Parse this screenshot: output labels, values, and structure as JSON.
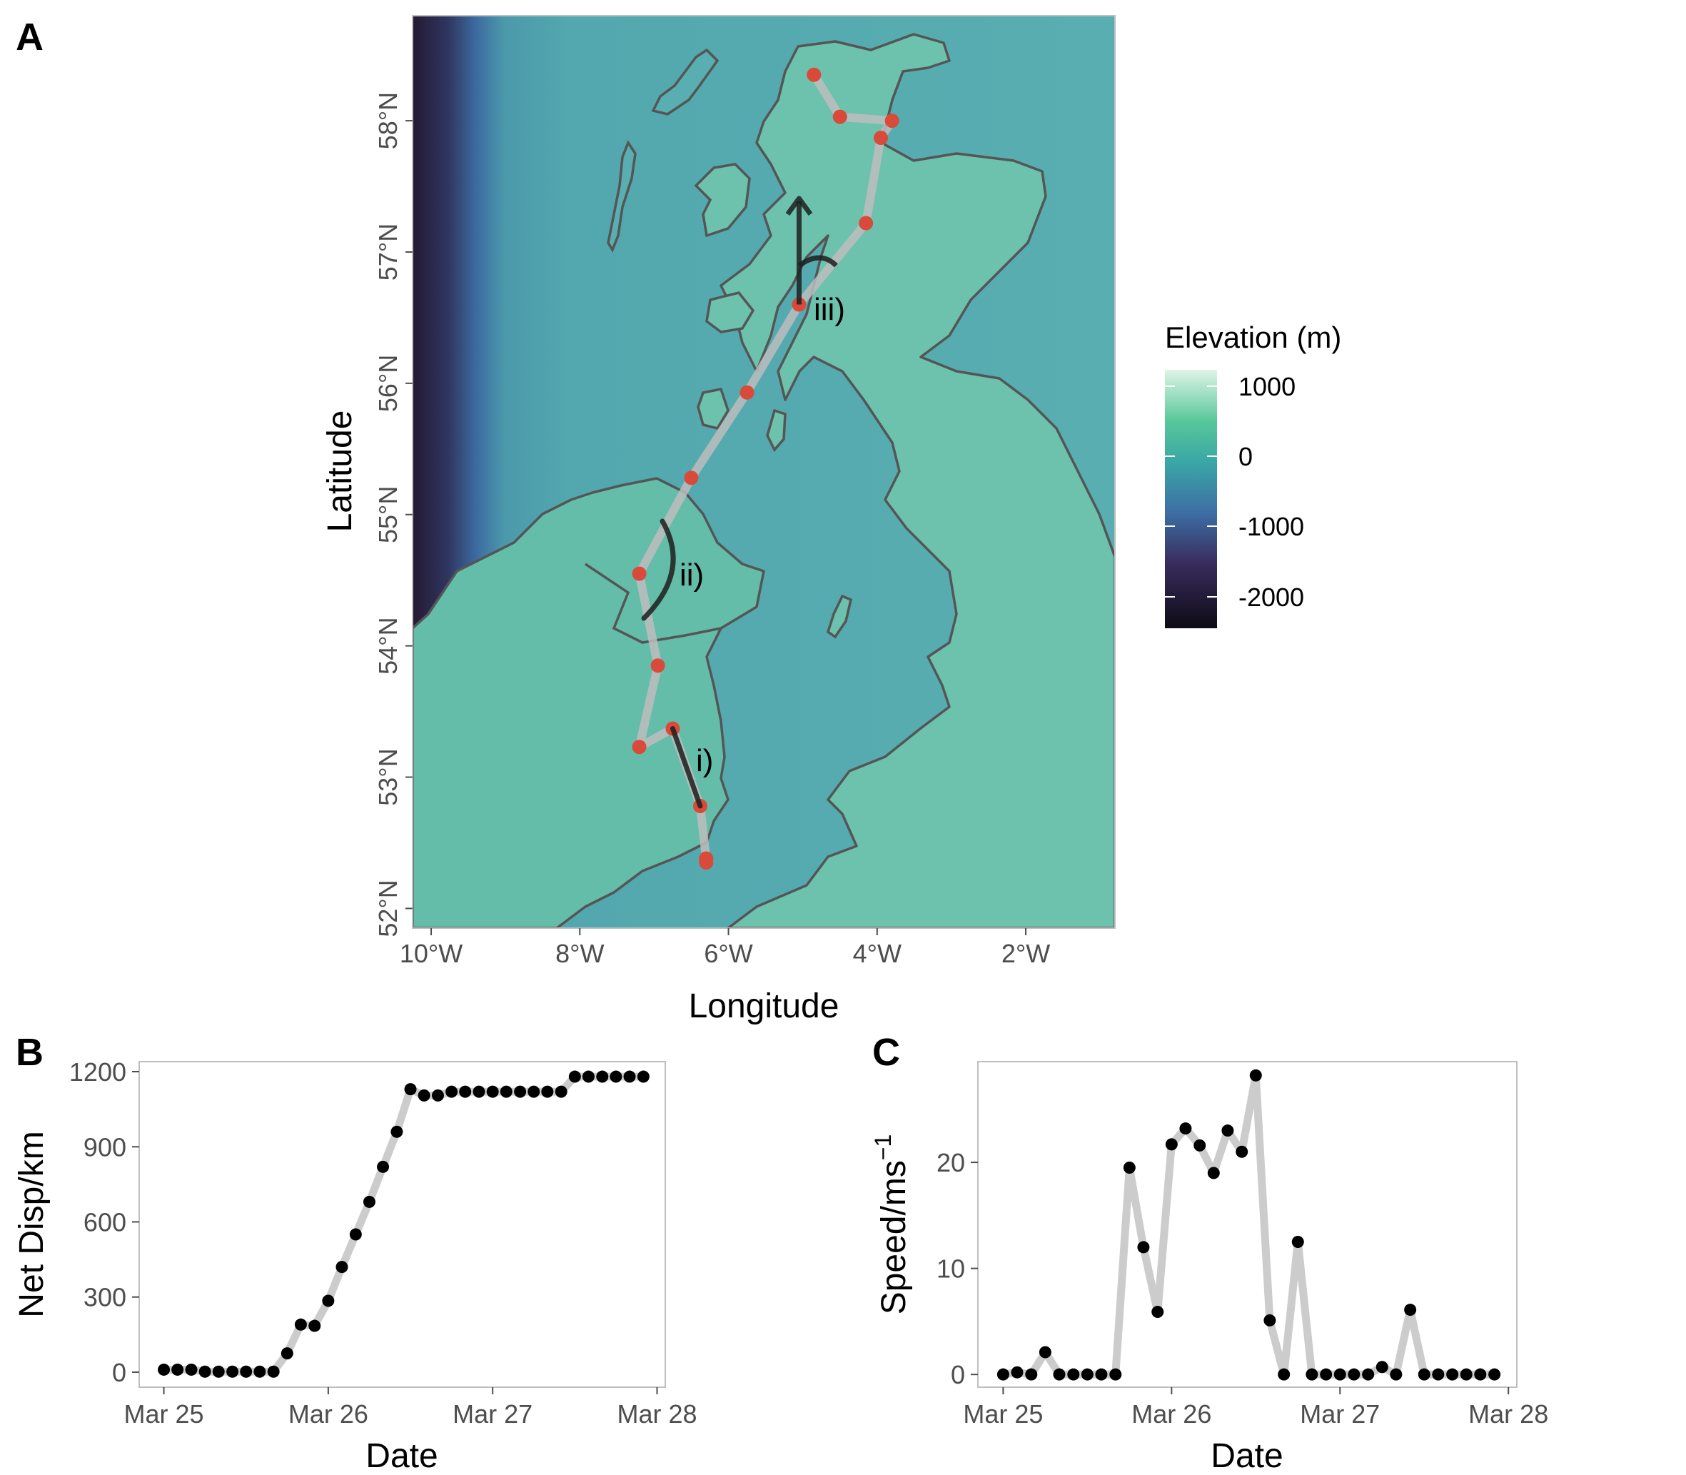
{
  "panels": {
    "a": "A",
    "b": "B",
    "c": "C"
  },
  "colors": {
    "track": "#bdbdbd",
    "fix_points": "#d94a3a",
    "black_points": "#000000",
    "coastline": "#555555",
    "arrow": "#1f1f1f"
  },
  "chart_data": [
    {
      "type": "scatter",
      "subtype": "map",
      "panel": "A",
      "xlabel": "Longitude",
      "ylabel": "Latitude",
      "xticks": [
        "10°W",
        "8°W",
        "6°W",
        "4°W",
        "2°W"
      ],
      "yticks": [
        "52°N",
        "53°N",
        "54°N",
        "55°N",
        "56°N",
        "57°N",
        "58°N"
      ],
      "xlim": [
        -10.25,
        -0.8
      ],
      "ylim": [
        51.85,
        58.8
      ],
      "legend": {
        "title": "Elevation (m)",
        "labels": [
          "1000",
          "0",
          "-1000",
          "-2000"
        ],
        "placement": "right"
      },
      "track_points": [
        {
          "lon": -6.3,
          "lat": 52.35
        },
        {
          "lon": -6.3,
          "lat": 52.38
        },
        {
          "lon": -6.38,
          "lat": 52.78
        },
        {
          "lon": -6.75,
          "lat": 53.37
        },
        {
          "lon": -7.2,
          "lat": 53.23
        },
        {
          "lon": -6.95,
          "lat": 53.85
        },
        {
          "lon": -7.2,
          "lat": 54.55
        },
        {
          "lon": -6.5,
          "lat": 55.28
        },
        {
          "lon": -5.75,
          "lat": 55.93
        },
        {
          "lon": -5.05,
          "lat": 56.6
        },
        {
          "lon": -4.15,
          "lat": 57.22
        },
        {
          "lon": -3.95,
          "lat": 57.87
        },
        {
          "lon": -3.8,
          "lat": 58.0
        },
        {
          "lon": -4.5,
          "lat": 58.03
        },
        {
          "lon": -4.85,
          "lat": 58.35
        }
      ],
      "annotations": [
        {
          "label": "i)"
        },
        {
          "label": "ii)"
        },
        {
          "label": "iii)"
        }
      ]
    },
    {
      "type": "line",
      "panel": "B",
      "xlabel": "Date",
      "ylabel": "Net Disp/km",
      "xticks": [
        "Mar 25",
        "Mar 26",
        "Mar 27",
        "Mar 28"
      ],
      "yticks": [
        "0",
        "300",
        "600",
        "900",
        "1200"
      ],
      "xlim": [
        -0.15,
        3.05
      ],
      "ylim": [
        -60,
        1240
      ],
      "x": [
        0,
        0.083,
        0.167,
        0.25,
        0.333,
        0.417,
        0.5,
        0.583,
        0.667,
        0.75,
        0.833,
        0.917,
        1.0,
        1.083,
        1.167,
        1.25,
        1.333,
        1.417,
        1.5,
        1.583,
        1.667,
        1.75,
        1.833,
        1.917,
        2.0,
        2.083,
        2.167,
        2.25,
        2.333,
        2.417,
        2.5,
        2.583,
        2.667,
        2.75,
        2.833,
        2.917
      ],
      "series": [
        {
          "values": [
            10,
            10,
            10,
            2,
            2,
            2,
            2,
            2,
            2,
            75,
            190,
            185,
            285,
            420,
            550,
            680,
            820,
            960,
            1130,
            1105,
            1105,
            1120,
            1120,
            1120,
            1120,
            1120,
            1120,
            1120,
            1120,
            1120,
            1180,
            1180,
            1180,
            1180,
            1180,
            1180
          ]
        }
      ]
    },
    {
      "type": "line",
      "panel": "C",
      "xlabel": "Date",
      "ylabel": "Speed/ms",
      "ylabel_superscript": "−1",
      "xticks": [
        "Mar 25",
        "Mar 26",
        "Mar 27",
        "Mar 28"
      ],
      "yticks": [
        "0",
        "10",
        "20"
      ],
      "xlim": [
        -0.15,
        3.05
      ],
      "ylim": [
        -1.2,
        29.5
      ],
      "x": [
        0,
        0.083,
        0.167,
        0.25,
        0.333,
        0.417,
        0.5,
        0.583,
        0.667,
        0.75,
        0.833,
        0.917,
        1.0,
        1.083,
        1.167,
        1.25,
        1.333,
        1.417,
        1.5,
        1.583,
        1.667,
        1.75,
        1.833,
        1.917,
        2.0,
        2.083,
        2.167,
        2.25,
        2.333,
        2.417,
        2.5,
        2.583,
        2.667,
        2.75,
        2.833,
        2.917
      ],
      "series": [
        {
          "values": [
            0,
            0.2,
            0,
            2.1,
            0,
            0,
            0,
            0,
            0,
            19.5,
            12,
            5.9,
            21.7,
            23.2,
            21.6,
            19,
            23,
            21,
            28.2,
            5.1,
            0,
            12.5,
            0,
            0,
            0,
            0,
            0,
            0.7,
            0,
            6.1,
            0,
            0,
            0,
            0,
            0,
            0
          ]
        }
      ]
    }
  ]
}
